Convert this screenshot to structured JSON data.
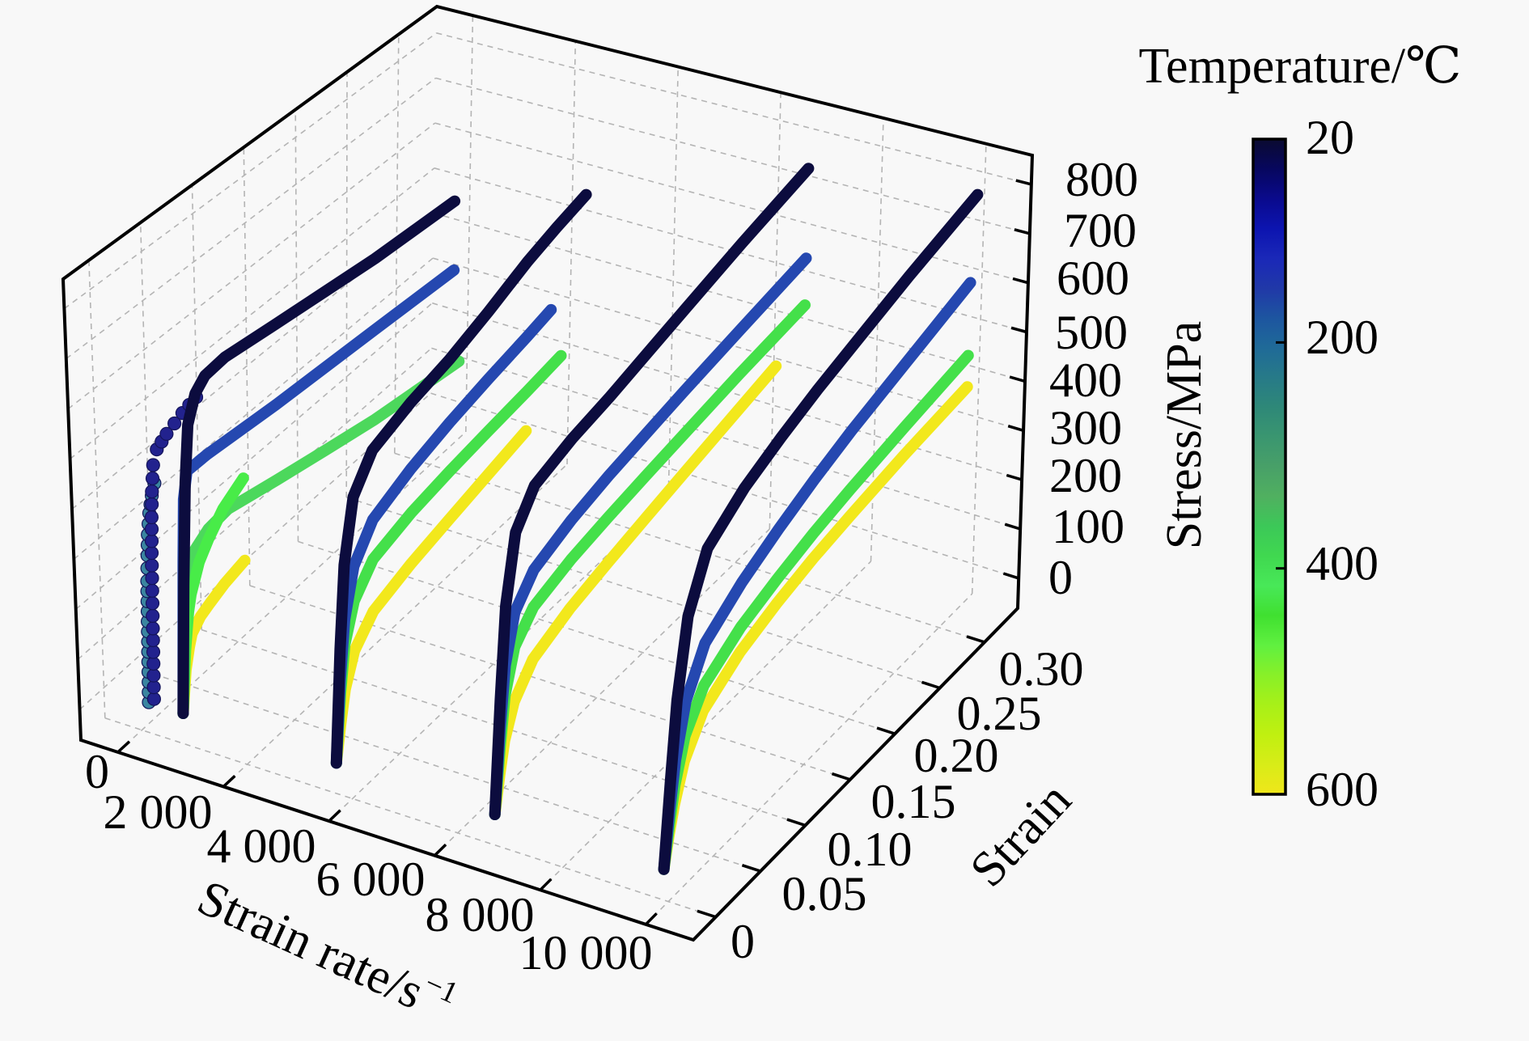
{
  "chart_data": {
    "type": "line3d",
    "title": "",
    "xlabel": "Strain rate/s",
    "xlabel_sup": "−1",
    "ylabel": "Strain",
    "zlabel": "Stress/MPa",
    "xlim": [
      -700,
      10900
    ],
    "ylim": [
      -0.025,
      0.337
    ],
    "zlim": [
      -61,
      859
    ],
    "grid": true,
    "xticks": [
      0,
      2000,
      4000,
      6000,
      8000,
      10000
    ],
    "xtick_labels": [
      "0",
      "2 000",
      "4 000",
      "6 000",
      "8 000",
      "10 000"
    ],
    "yticks": [
      0,
      0.05,
      0.1,
      0.15,
      0.2,
      0.25,
      0.3
    ],
    "ytick_labels": [
      "0",
      "0.05",
      "0.10",
      "0.15",
      "0.20",
      "0.25",
      "0.30"
    ],
    "zticks": [
      0,
      100,
      200,
      300,
      400,
      500,
      600,
      700,
      800
    ],
    "ztick_labels": [
      "0",
      "100",
      "200",
      "300",
      "400",
      "500",
      "600",
      "700",
      "800"
    ],
    "colorbar": {
      "label": "Temperature/℃",
      "min": 20,
      "max": 600,
      "ticks": [
        20,
        200,
        400,
        600
      ],
      "tick_labels": [
        "20",
        "200",
        "400",
        "600"
      ],
      "placement": "right",
      "colors": [
        "#0a0a30",
        "#07075e",
        "#0a0a8c",
        "#0c14b0",
        "#1a28b8",
        "#2038a8",
        "#1d55a0",
        "#1f6a98",
        "#277a88",
        "#2e8878",
        "#3a9670",
        "#48a068",
        "#50b060",
        "#3cc858",
        "#40d850",
        "#48e858",
        "#40e030",
        "#60f040",
        "#88f028",
        "#a8f018",
        "#c0f010",
        "#d8ec18",
        "#f0e61a"
      ]
    },
    "series": [
      {
        "strain_rate": 150,
        "temperature": 200,
        "color": "#3a85a0",
        "marker": "o",
        "points": [
          [
            0,
            0
          ],
          [
            0.0005,
            60
          ],
          [
            0.001,
            120
          ],
          [
            0.0015,
            180
          ],
          [
            0.002,
            240
          ],
          [
            0.003,
            290
          ],
          [
            0.004,
            330
          ],
          [
            0.006,
            370
          ],
          [
            0.009,
            400
          ],
          [
            0.012,
            420
          ]
        ]
      },
      {
        "strain_rate": 250,
        "temperature": 20,
        "color": "#22228e",
        "marker": "o",
        "points": [
          [
            0,
            10
          ],
          [
            0.0005,
            80
          ],
          [
            0.001,
            150
          ],
          [
            0.0015,
            225
          ],
          [
            0.002,
            300
          ],
          [
            0.003,
            370
          ],
          [
            0.004,
            420
          ],
          [
            0.006,
            470
          ],
          [
            0.01,
            495
          ],
          [
            0.02,
            510
          ],
          [
            0.028,
            518
          ],
          [
            0.036,
            526
          ],
          [
            0.043,
            531
          ],
          [
            0.05,
            535
          ]
        ]
      },
      {
        "strain_rate": 800,
        "temperature": 600,
        "color": "#f2e81c",
        "marker": "line",
        "points": [
          [
            0,
            0
          ],
          [
            0.004,
            80
          ],
          [
            0.008,
            120
          ],
          [
            0.011,
            141
          ],
          [
            0.02,
            160
          ],
          [
            0.03,
            170
          ],
          [
            0.045,
            183
          ],
          [
            0.066,
            194
          ]
        ]
      },
      {
        "strain_rate": 800,
        "temperature": 400,
        "color": "#4cd85c",
        "marker": "line",
        "points": [
          [
            0,
            0
          ],
          [
            0.004,
            150
          ],
          [
            0.008,
            250
          ],
          [
            0.015,
            300
          ],
          [
            0.03,
            320
          ],
          [
            0.05,
            326
          ],
          [
            0.1,
            300
          ],
          [
            0.15,
            275
          ],
          [
            0.2,
            250
          ],
          [
            0.286,
            218
          ]
        ]
      },
      {
        "strain_rate": 800,
        "temperature": 400,
        "color": "#48ec48",
        "marker": "line",
        "points": [
          [
            0,
            0
          ],
          [
            0.004,
            120
          ],
          [
            0.008,
            190
          ],
          [
            0.011,
            220
          ],
          [
            0.02,
            270
          ],
          [
            0.03,
            300
          ],
          [
            0.045,
            335
          ],
          [
            0.066,
            362
          ]
        ]
      },
      {
        "strain_rate": 800,
        "temperature": 200,
        "color": "#2548b0",
        "marker": "line",
        "points": [
          [
            0,
            0
          ],
          [
            0.002,
            150
          ],
          [
            0.004,
            300
          ],
          [
            0.006,
            420
          ],
          [
            0.01,
            470
          ],
          [
            0.03,
            470
          ],
          [
            0.1,
            455
          ],
          [
            0.2,
            440
          ],
          [
            0.28,
            426
          ]
        ]
      },
      {
        "strain_rate": 800,
        "temperature": 20,
        "color": "#0c0c3e",
        "marker": "line",
        "points": [
          [
            0,
            0
          ],
          [
            0.004,
            250
          ],
          [
            0.008,
            450
          ],
          [
            0.012,
            560
          ],
          [
            0.02,
            610
          ],
          [
            0.03,
            630
          ],
          [
            0.05,
            635
          ],
          [
            0.1,
            620
          ],
          [
            0.15,
            605
          ],
          [
            0.2,
            590
          ],
          [
            0.28,
            575
          ]
        ]
      },
      {
        "strain_rate": 3700,
        "temperature": 600,
        "color": "#f2e81c",
        "marker": "line",
        "points": [
          [
            0,
            0
          ],
          [
            0.005,
            70
          ],
          [
            0.01,
            130
          ],
          [
            0.02,
            190
          ],
          [
            0.04,
            235
          ],
          [
            0.08,
            262
          ],
          [
            0.12,
            282
          ],
          [
            0.16,
            302
          ],
          [
            0.2,
            322
          ]
        ]
      },
      {
        "strain_rate": 3700,
        "temperature": 400,
        "color": "#44e04a",
        "marker": "line",
        "points": [
          [
            0,
            0
          ],
          [
            0.005,
            130
          ],
          [
            0.01,
            220
          ],
          [
            0.02,
            290
          ],
          [
            0.04,
            340
          ],
          [
            0.08,
            365
          ],
          [
            0.12,
            380
          ],
          [
            0.16,
            392
          ],
          [
            0.2,
            403
          ],
          [
            0.236,
            415
          ]
        ]
      },
      {
        "strain_rate": 3700,
        "temperature": 200,
        "color": "#2548b0",
        "marker": "line",
        "points": [
          [
            0,
            0
          ],
          [
            0.005,
            160
          ],
          [
            0.01,
            270
          ],
          [
            0.02,
            360
          ],
          [
            0.04,
            420
          ],
          [
            0.08,
            455
          ],
          [
            0.12,
            480
          ],
          [
            0.16,
            500
          ],
          [
            0.2,
            518
          ],
          [
            0.225,
            531
          ]
        ]
      },
      {
        "strain_rate": 3700,
        "temperature": 20,
        "color": "#0c0c3e",
        "marker": "line",
        "points": [
          [
            0,
            0
          ],
          [
            0.005,
            220
          ],
          [
            0.01,
            380
          ],
          [
            0.02,
            500
          ],
          [
            0.04,
            560
          ],
          [
            0.08,
            590
          ],
          [
            0.12,
            610
          ],
          [
            0.16,
            640
          ],
          [
            0.2,
            675
          ],
          [
            0.23,
            695
          ],
          [
            0.26,
            712
          ]
        ]
      },
      {
        "strain_rate": 6700,
        "temperature": 600,
        "color": "#f2e81c",
        "marker": "line",
        "points": [
          [
            0,
            0
          ],
          [
            0.005,
            70
          ],
          [
            0.01,
            130
          ],
          [
            0.02,
            190
          ],
          [
            0.04,
            240
          ],
          [
            0.08,
            272
          ],
          [
            0.12,
            292
          ],
          [
            0.16,
            310
          ],
          [
            0.2,
            328
          ],
          [
            0.25,
            350
          ],
          [
            0.3,
            372
          ]
        ]
      },
      {
        "strain_rate": 6700,
        "temperature": 400,
        "color": "#44e04a",
        "marker": "line",
        "points": [
          [
            0,
            0
          ],
          [
            0.005,
            120
          ],
          [
            0.01,
            220
          ],
          [
            0.02,
            300
          ],
          [
            0.04,
            345
          ],
          [
            0.08,
            370
          ],
          [
            0.12,
            385
          ],
          [
            0.16,
            398
          ],
          [
            0.2,
            410
          ],
          [
            0.26,
            428
          ],
          [
            0.33,
            445
          ]
        ]
      },
      {
        "strain_rate": 6700,
        "temperature": 200,
        "color": "#2548b0",
        "marker": "line",
        "points": [
          [
            0,
            0
          ],
          [
            0.005,
            160
          ],
          [
            0.01,
            280
          ],
          [
            0.02,
            370
          ],
          [
            0.04,
            420
          ],
          [
            0.08,
            450
          ],
          [
            0.12,
            470
          ],
          [
            0.16,
            485
          ],
          [
            0.2,
            500
          ],
          [
            0.26,
            520
          ],
          [
            0.33,
            543
          ]
        ]
      },
      {
        "strain_rate": 6700,
        "temperature": 20,
        "color": "#0c0c3e",
        "marker": "line",
        "points": [
          [
            0,
            0
          ],
          [
            0.005,
            220
          ],
          [
            0.01,
            400
          ],
          [
            0.02,
            530
          ],
          [
            0.04,
            590
          ],
          [
            0.08,
            615
          ],
          [
            0.12,
            630
          ],
          [
            0.16,
            650
          ],
          [
            0.2,
            670
          ],
          [
            0.26,
            700
          ],
          [
            0.33,
            731
          ]
        ]
      },
      {
        "strain_rate": 9900,
        "temperature": 600,
        "color": "#f2e81c",
        "marker": "line",
        "points": [
          [
            0,
            0
          ],
          [
            0.005,
            60
          ],
          [
            0.01,
            110
          ],
          [
            0.02,
            180
          ],
          [
            0.04,
            245
          ],
          [
            0.08,
            290
          ],
          [
            0.12,
            315
          ],
          [
            0.16,
            333
          ],
          [
            0.2,
            345
          ],
          [
            0.26,
            360
          ],
          [
            0.33,
            372
          ]
        ]
      },
      {
        "strain_rate": 9900,
        "temperature": 400,
        "color": "#44e04a",
        "marker": "line",
        "points": [
          [
            0,
            0
          ],
          [
            0.005,
            80
          ],
          [
            0.01,
            150
          ],
          [
            0.02,
            230
          ],
          [
            0.04,
            295
          ],
          [
            0.08,
            340
          ],
          [
            0.12,
            365
          ],
          [
            0.16,
            385
          ],
          [
            0.2,
            400
          ],
          [
            0.26,
            418
          ],
          [
            0.33,
            436
          ]
        ]
      },
      {
        "strain_rate": 9900,
        "temperature": 200,
        "color": "#2548b0",
        "marker": "line",
        "points": [
          [
            0,
            0
          ],
          [
            0.005,
            110
          ],
          [
            0.01,
            200
          ],
          [
            0.02,
            300
          ],
          [
            0.04,
            380
          ],
          [
            0.08,
            430
          ],
          [
            0.12,
            465
          ],
          [
            0.16,
            495
          ],
          [
            0.2,
            520
          ],
          [
            0.26,
            550
          ],
          [
            0.33,
            585
          ]
        ]
      },
      {
        "strain_rate": 9900,
        "temperature": 20,
        "color": "#0c0c3e",
        "marker": "line",
        "points": [
          [
            0,
            0
          ],
          [
            0.005,
            170
          ],
          [
            0.01,
            320
          ],
          [
            0.02,
            470
          ],
          [
            0.04,
            570
          ],
          [
            0.08,
            620
          ],
          [
            0.12,
            650
          ],
          [
            0.16,
            675
          ],
          [
            0.2,
            695
          ],
          [
            0.26,
            725
          ],
          [
            0.335,
            756
          ]
        ]
      }
    ]
  }
}
